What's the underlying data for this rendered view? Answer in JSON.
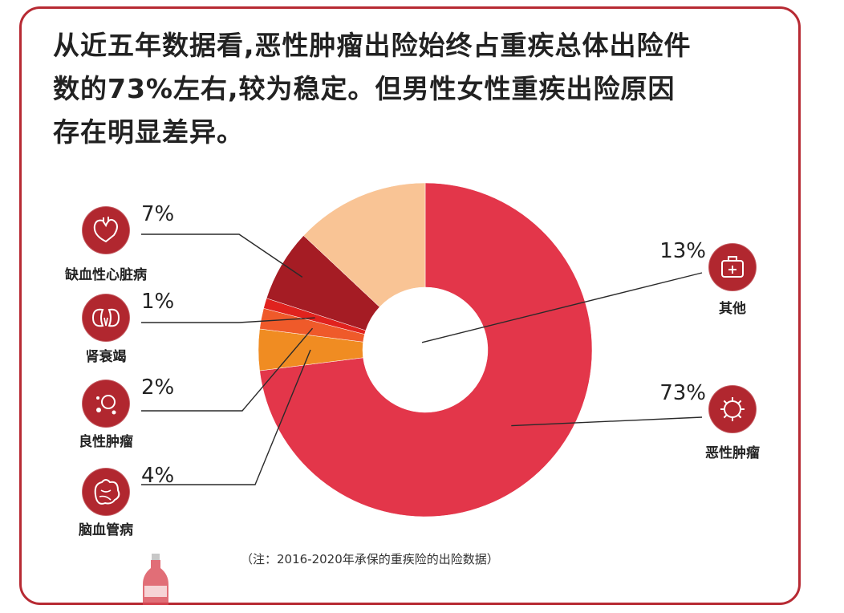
{
  "headline": {
    "line1": "从近五年数据看,恶性肿瘤出险始终占重疾总体出险件",
    "line2": "数的73%左右,较为稳定。但男性女性重疾出险原因",
    "line3": "存在明显差异。"
  },
  "note": "（注：2016-2020年承保的重疾险的出险数据）",
  "colors": {
    "frame": "#b72a33",
    "icon_circle": "#b1272f"
  },
  "chart_data": {
    "type": "pie",
    "title": "",
    "donut": true,
    "slices": [
      {
        "label": "恶性肿瘤",
        "value": 73,
        "pct_label": "73%",
        "color": "#e3364a",
        "icon": "virus-icon"
      },
      {
        "label": "脑血管病",
        "value": 4,
        "pct_label": "4%",
        "color": "#f08c22",
        "icon": "brain-icon"
      },
      {
        "label": "良性肿瘤",
        "value": 2,
        "pct_label": "2%",
        "color": "#ef5a2a",
        "icon": "cells-icon"
      },
      {
        "label": "肾衰竭",
        "value": 1,
        "pct_label": "1%",
        "color": "#e0221e",
        "icon": "kidney-icon"
      },
      {
        "label": "缺血性心脏病",
        "value": 7,
        "pct_label": "7%",
        "color": "#a51c24",
        "icon": "heart-icon"
      },
      {
        "label": "其他",
        "value": 13,
        "pct_label": "13%",
        "color": "#f9c495",
        "icon": "medkit-icon"
      }
    ]
  }
}
